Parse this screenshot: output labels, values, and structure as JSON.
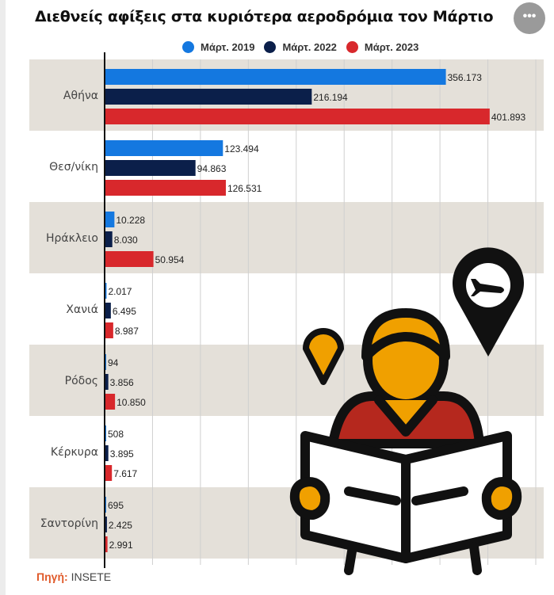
{
  "title": "Διεθνείς αφίξεις στα κυριότερα αεροδρόμια τον Μάρτιο",
  "menu_icon": "more-horizontal-icon",
  "source": {
    "label": "Πηγή:",
    "value": "INSETE"
  },
  "chart_data": {
    "type": "bar",
    "orientation": "horizontal",
    "title": "Διεθνείς αφίξεις στα κυριότερα αεροδρόμια τον Μάρτιο",
    "categories": [
      "Αθήνα",
      "Θεσ/νίκη",
      "Ηράκλειο",
      "Χανιά",
      "Ρόδος",
      "Κέρκυρα",
      "Σαντορίνη"
    ],
    "series": [
      {
        "name": "Μάρτ. 2019",
        "color": "#1478e0",
        "values": [
          356173,
          123494,
          10228,
          2017,
          94,
          508,
          695
        ],
        "labels": [
          "356.173",
          "123.494",
          "10.228",
          "2.017",
          "94",
          "508",
          "695"
        ]
      },
      {
        "name": "Μάρτ. 2022",
        "color": "#0b1f4a",
        "values": [
          216194,
          94863,
          8030,
          6495,
          3856,
          3895,
          2425
        ],
        "labels": [
          "216.194",
          "94.863",
          "8.030",
          "6.495",
          "3.856",
          "3.895",
          "2.425"
        ]
      },
      {
        "name": "Μάρτ. 2023",
        "color": "#d8282c",
        "values": [
          401893,
          126531,
          50954,
          8987,
          10850,
          7617,
          2991
        ],
        "labels": [
          "401.893",
          "126.531",
          "50.954",
          "8.987",
          "10.850",
          "7.617",
          "2.991"
        ]
      }
    ],
    "xlim": [
      0,
      450000
    ],
    "grid_step": 50000,
    "grid": true,
    "legend": "top-center",
    "band_color": "#e4e0d9"
  }
}
